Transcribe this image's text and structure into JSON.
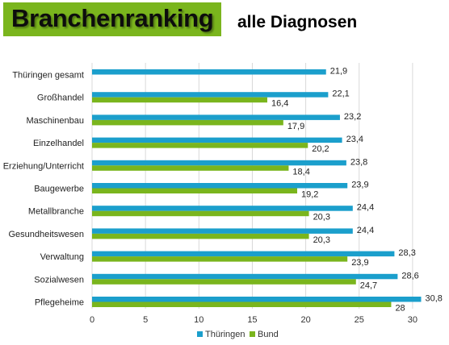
{
  "header": {
    "title": "Branchenranking",
    "subtitle": "alle Diagnosen"
  },
  "colors": {
    "title_bg": "#7ab51d",
    "thueringen": "#1b9fcc",
    "bund": "#7ab51d",
    "grid": "#d9d9d9"
  },
  "chart_data": {
    "type": "bar",
    "orientation": "horizontal",
    "title": "",
    "xlabel": "",
    "ylabel": "",
    "xlim": [
      0,
      30
    ],
    "xticks": [
      0,
      5,
      10,
      15,
      20,
      25,
      30
    ],
    "grid": true,
    "legend_position": "bottom",
    "categories": [
      "Thüringen gesamt",
      "Großhandel",
      "Maschinenbau",
      "Einzelhandel",
      "Erziehung/Unterricht",
      "Baugewerbe",
      "Metallbranche",
      "Gesundheitswesen",
      "Verwaltung",
      "Sozialwesen",
      "Pflegeheime"
    ],
    "series": [
      {
        "name": "Thüringen",
        "values": [
          21.9,
          22.1,
          23.2,
          23.4,
          23.8,
          23.9,
          24.4,
          24.4,
          28.3,
          28.6,
          30.8
        ],
        "labels": [
          "21,9",
          "22,1",
          "23,2",
          "23,4",
          "23,8",
          "23,9",
          "24,4",
          "24,4",
          "28,3",
          "28,6",
          "30,8"
        ]
      },
      {
        "name": "Bund",
        "values": [
          null,
          16.4,
          17.9,
          20.2,
          18.4,
          19.2,
          20.3,
          20.3,
          23.9,
          24.7,
          28
        ],
        "labels": [
          "",
          "16,4",
          "17,9",
          "20,2",
          "18,4",
          "19,2",
          "20,3",
          "20,3",
          "23,9",
          "24,7",
          "28"
        ]
      }
    ]
  }
}
